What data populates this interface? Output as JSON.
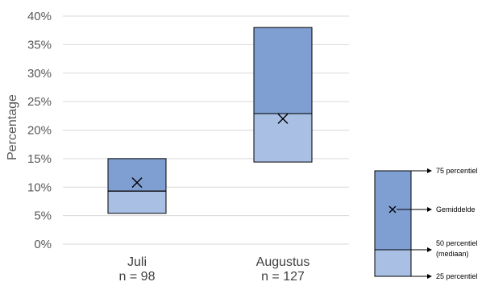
{
  "chart_data": {
    "type": "box",
    "ylabel": "Percentage",
    "ylim": [
      0,
      40
    ],
    "yticks": [
      0,
      5,
      10,
      15,
      20,
      25,
      30,
      35,
      40
    ],
    "ytick_labels": [
      "0%",
      "5%",
      "10%",
      "15%",
      "20%",
      "25%",
      "30%",
      "35%",
      "40%"
    ],
    "grid": true,
    "categories": [
      {
        "label": "Juli",
        "n_label": "n = 98",
        "p25": 5.4,
        "median": 9.3,
        "p75": 15.0,
        "mean": 10.8
      },
      {
        "label": "Augustus",
        "n_label": "n = 127",
        "p25": 14.4,
        "median": 22.9,
        "p75": 38.0,
        "mean": 22.0
      }
    ],
    "colors": {
      "upper": "#7f9fd3",
      "lower": "#a9c0e4",
      "outline": "#000000",
      "grid": "#d9d9d9"
    },
    "legend": {
      "p75": "75 percentiel",
      "mean": "Gemiddelde",
      "median_line1": "50 percentiel",
      "median_line2": "(mediaan)",
      "p25": "25 percentiel"
    }
  }
}
